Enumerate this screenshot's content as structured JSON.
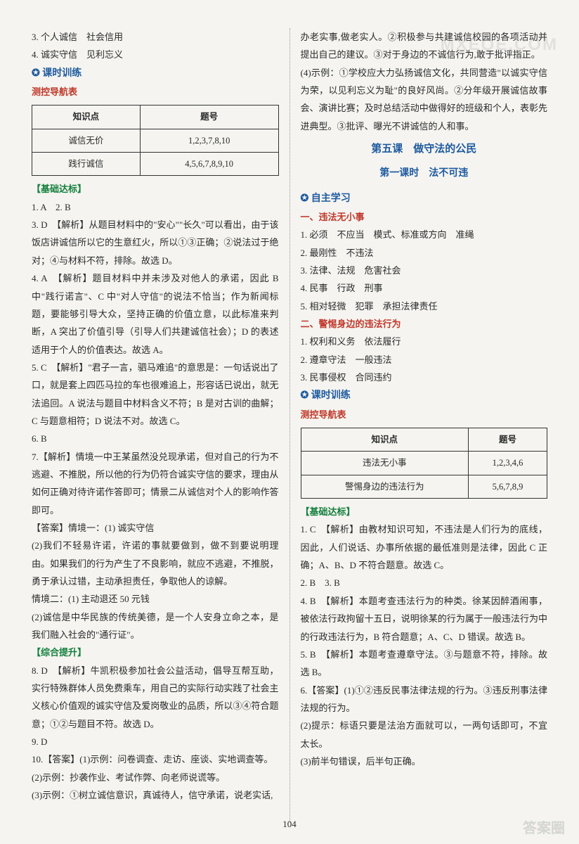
{
  "watermark": "MXEQE.COM",
  "watermark_bottom": "答案圈",
  "page_number": "104",
  "left": {
    "line1": "3. 个人诚信　社会信用",
    "line2": "4. 诚实守信　见利忘义",
    "keshi_header": "课时训练",
    "cekong_header": "测控导航表",
    "table1": {
      "columns": [
        "知识点",
        "题号"
      ],
      "rows": [
        [
          "诚信无价",
          "1,2,3,7,8,10"
        ],
        [
          "践行诚信",
          "4,5,6,7,8,9,10"
        ]
      ]
    },
    "jichu_header": "【基础达标】",
    "l1": "1. A　2. B",
    "l3": "3. D　【解析】从题目材料中的\"安心\"\"长久\"可以看出，由于该饭店讲诚信所以它的生意红火，所以①③正确；②说法过于绝对；④与材料不符，排除。故选 D。",
    "l4": "4. A　【解析】题目材料中并未涉及对他人的承诺，因此 B 中\"践行诺言\"、C 中\"对人守信\"的说法不恰当；作为新闻标题，要能够引导大众，坚持正确的价值立意，以此标准来判断，A 突出了价值引导（引导人们共建诚信社会）；D 的表述适用于个人的价值表达。故选 A。",
    "l5": "5. C　【解析】\"君子一言，驷马难追\"的意思是：一句话说出了口，就是套上四匹马拉的车也很难追上，形容话已说出，就无法追回。A 说法与题目中材料含义不符；B 是对古训的曲解；C 与题意相符；D 说法不对。故选 C。",
    "l6": "6. B",
    "l7": "7.【解析】情境一中王某虽然没兑现承诺，但对自己的行为不逃避、不推脱，所以他的行为仍符合诚实守信的要求，理由从如何正确对待许诺作答即可；情景二从诚信对个人的影响作答即可。",
    "l7a": "【答案】情境一：(1) 诚实守信",
    "l7b": "(2)我们不轻易许诺，许诺的事就要做到，做不到要说明理由。如果我们的行为产生了不良影响，就应不逃避，不推脱，勇于承认过错，主动承担责任，争取他人的谅解。",
    "l7c": "情境二：(1) 主动退还 50 元钱",
    "l7d": "(2)诚信是中华民族的传统美德，是一个人安身立命之本，是我们融入社会的\"通行证\"。",
    "zonghe_header": "【综合提升】",
    "l8": "8. D　【解析】牛凯积极参加社会公益活动，倡导互帮互助，实行特殊群体人员免费乘车，用自己的实际行动实践了社会主义核心价值观的诚实守信及爱岗敬业的品质，所以③④符合题意；①②与题目不符。故选 D。",
    "l9": "9. D",
    "l10a": "10.【答案】(1)示例：问卷调查、走访、座谈、实地调查等。",
    "l10b": "(2)示例：抄袭作业、考试作弊、向老师说谎等。",
    "l10c": "(3)示例：①树立诚信意识，真诚待人，信守承诺，说老实话,"
  },
  "right": {
    "r1": "办老实事,做老实人。②积极参与共建诚信校园的各项活动并提出自己的建议。③对于身边的不诚信行为,敢于批评指正。",
    "r2": "(4)示例：①学校应大力弘扬诚信文化，共同营造\"以诚实守信为荣，以见利忘义为耻\"的良好风尚。②分年级开展诚信故事会、演讲比赛；及时总结活动中做得好的班级和个人，表彰先进典型。③批评、曝光不讲诚信的人和事。",
    "lesson5_title": "第五课　做守法的公民",
    "lesson5_sub": "第一课时　法不可违",
    "zizhu_header": "自主学习",
    "sec1_header": "一、违法无小事",
    "s1": "1. 必须　不应当　模式、标准或方向　准绳",
    "s2": "2. 最刚性　不违法",
    "s3": "3. 法律、法规　危害社会",
    "s4": "4. 民事　行政　刑事",
    "s5": "5. 相对轻微　犯罪　承担法律责任",
    "sec2_header": "二、警惕身边的违法行为",
    "s6": "1. 权利和义务　依法履行",
    "s7": "2. 遵章守法　一般违法",
    "s8": "3. 民事侵权　合同违约",
    "keshi_header": "课时训练",
    "cekong_header": "测控导航表",
    "table2": {
      "columns": [
        "知识点",
        "题号"
      ],
      "rows": [
        [
          "违法无小事",
          "1,2,3,4,6"
        ],
        [
          "警惕身边的违法行为",
          "5,6,7,8,9"
        ]
      ]
    },
    "jichu_header": "【基础达标】",
    "r3": "1. C　【解析】由教材知识可知，不违法是人们行为的底线，因此，人们说话、办事所依据的最低准则是法律，因此 C 正确；A、B、D 不符合题意。故选 C。",
    "r4": "2. B　3. B",
    "r5": "4. B　【解析】本题考查违法行为的种类。徐某因醉酒闹事，被依法行政拘留十五日，说明徐某的行为属于一般违法行为中的行政违法行为，B 符合题意；A、C、D 错误。故选 B。",
    "r6": "5. B　【解析】本题考查遵章守法。③与题意不符，排除。故选 B。",
    "r7": "6.【答案】(1)①②违反民事法律法规的行为。③违反刑事法律法规的行为。",
    "r8": "(2)提示：标语只要是法治方面就可以，一两句话即可，不宜太长。",
    "r9": "(3)前半句错误，后半句正确。"
  }
}
